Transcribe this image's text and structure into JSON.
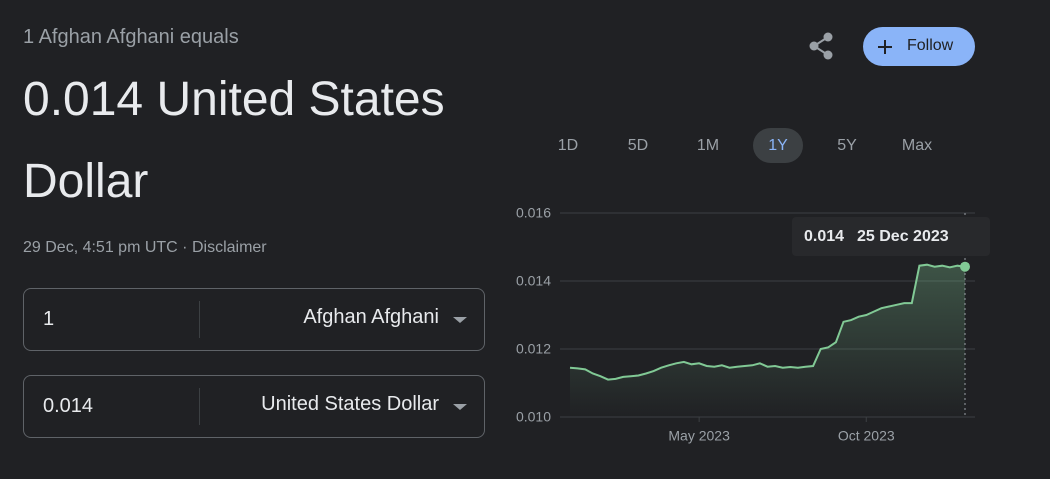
{
  "header": {
    "subtitle": "1 Afghan Afghani equals",
    "result": "0.014 United States Dollar",
    "timestamp": "29 Dec, 4:51 pm UTC",
    "disclaimer": "Disclaimer"
  },
  "follow": "Follow",
  "converter": [
    {
      "amount": "1",
      "currency": "Afghan Afghani"
    },
    {
      "amount": "0.014",
      "currency": "United States Dollar"
    }
  ],
  "ranges": [
    "1D",
    "5D",
    "1M",
    "1Y",
    "5Y",
    "Max"
  ],
  "selected_range": 3,
  "chart_data": {
    "type": "line",
    "categories": [
      null,
      null,
      null,
      null,
      null,
      null,
      null,
      null,
      null,
      null,
      null,
      null,
      null,
      null,
      null,
      null,
      null,
      "May 2023",
      null,
      null,
      null,
      null,
      null,
      null,
      null,
      null,
      null,
      null,
      null,
      null,
      null,
      null,
      null,
      null,
      null,
      null,
      null,
      null,
      null,
      "Oct 2023",
      null,
      null,
      null,
      null,
      null,
      null,
      null,
      null,
      null,
      null,
      null,
      null,
      null
    ],
    "series": [
      {
        "color": "#81c995",
        "values": [
          0.01145,
          0.01143,
          0.0114,
          0.01128,
          0.0112,
          0.0111,
          0.01112,
          0.01118,
          0.0112,
          0.01122,
          0.01128,
          0.01135,
          0.01145,
          0.01152,
          0.01158,
          0.01162,
          0.01155,
          0.01158,
          0.0115,
          0.01148,
          0.01152,
          0.01145,
          0.01148,
          0.0115,
          0.01152,
          0.01158,
          0.01148,
          0.0115,
          0.01145,
          0.01147,
          0.01145,
          0.01148,
          0.0115,
          0.012,
          0.01205,
          0.0122,
          0.0128,
          0.01285,
          0.01295,
          0.013,
          0.0131,
          0.0132,
          0.01325,
          0.0133,
          0.01335,
          0.01335,
          0.01445,
          0.01448,
          0.01442,
          0.01445,
          0.0144,
          0.01445,
          0.01442
        ]
      }
    ],
    "ylim": [
      0.01,
      0.016
    ],
    "yticks": [
      {
        "value": 0.01,
        "label": "0.010"
      },
      0.012,
      0.014,
      0.016
    ],
    "grid": true,
    "tooltip": {
      "value": "0.014",
      "date": "25 Dec 2023"
    }
  }
}
